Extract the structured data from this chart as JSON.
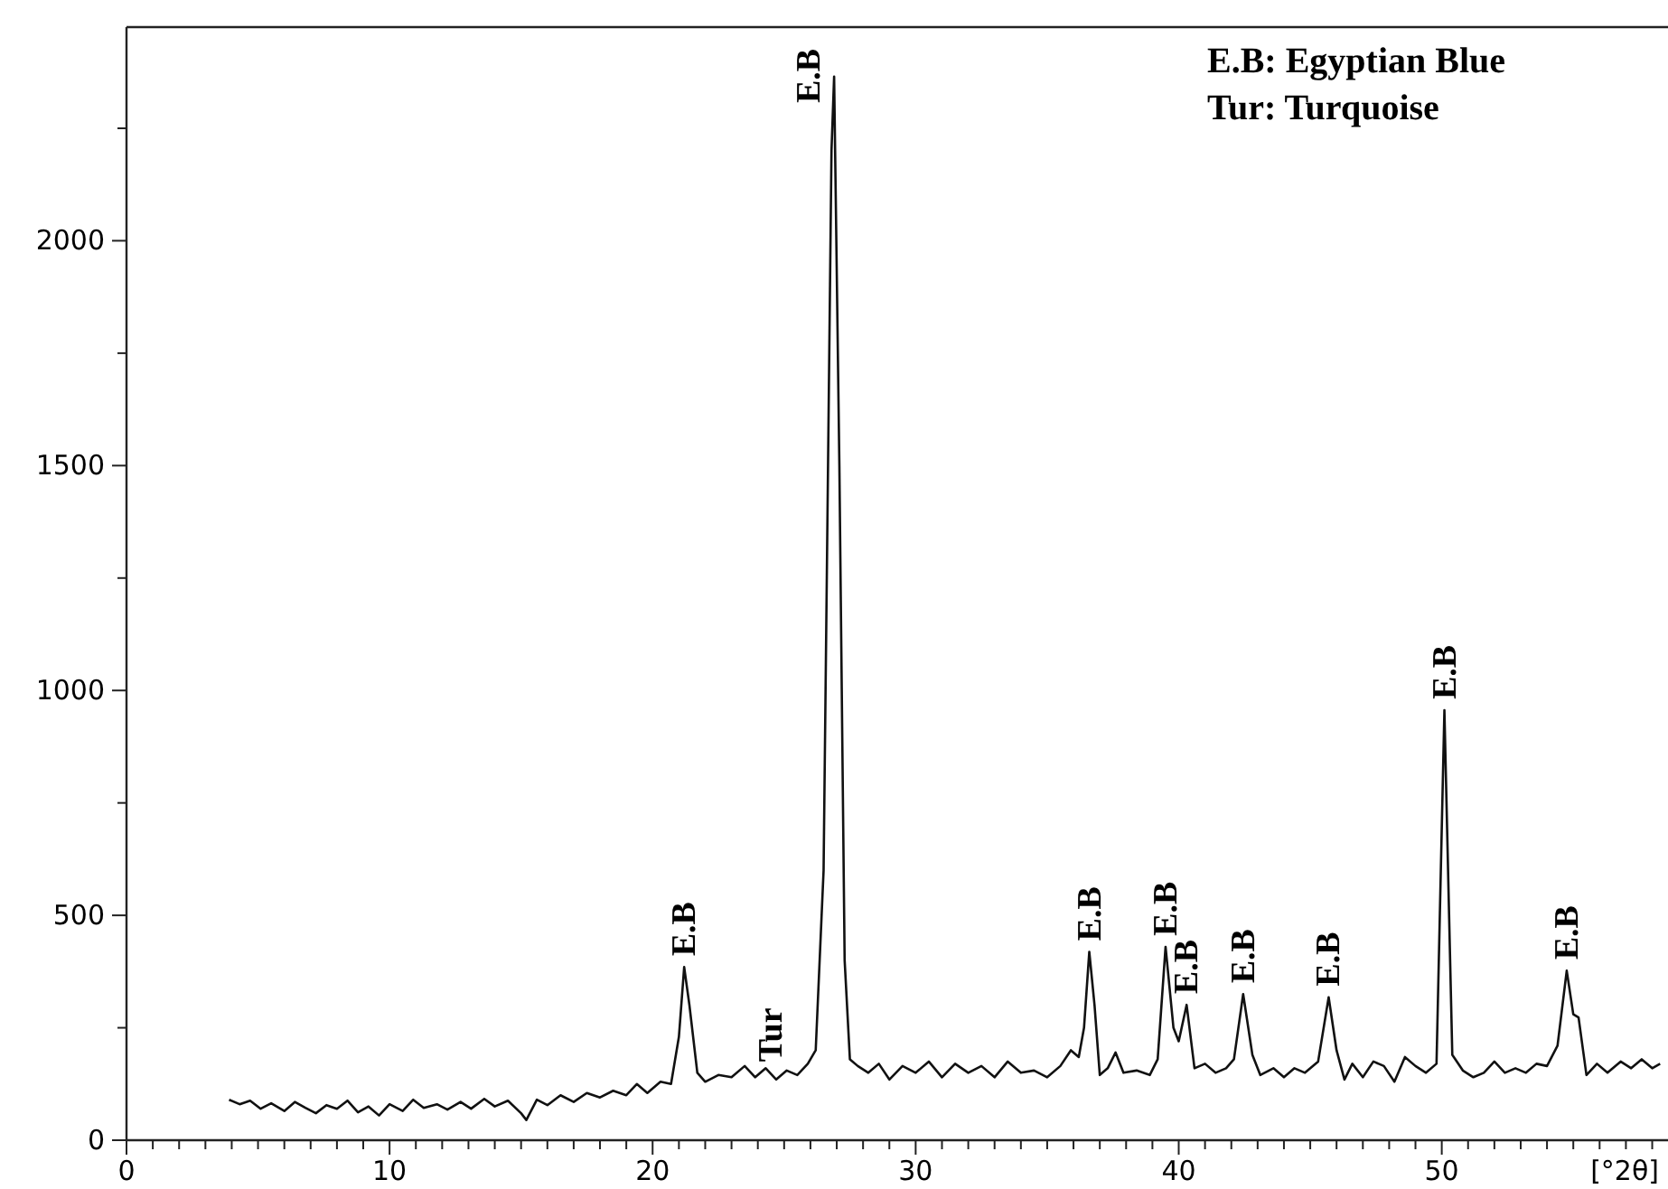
{
  "chart_data": {
    "type": "line",
    "xlabel": "[°2θ]",
    "xlim": [
      0,
      58.6
    ],
    "xticks": [
      0,
      {
        "value": 1,
        "label": null
      },
      {
        "value": 2,
        "label": null
      },
      {
        "value": 3,
        "label": null
      },
      {
        "value": 4,
        "label": null
      },
      {
        "value": 5,
        "label": null
      },
      {
        "value": 6,
        "label": null
      },
      {
        "value": 7,
        "label": null
      },
      {
        "value": 8,
        "label": null
      },
      {
        "value": 9,
        "label": null
      },
      10,
      {
        "value": 11,
        "label": null
      },
      {
        "value": 12,
        "label": null
      },
      {
        "value": 13,
        "label": null
      },
      {
        "value": 14,
        "label": null
      },
      {
        "value": 15,
        "label": null
      },
      {
        "value": 16,
        "label": null
      },
      {
        "value": 17,
        "label": null
      },
      {
        "value": 18,
        "label": null
      },
      {
        "value": 19,
        "label": null
      },
      20,
      {
        "value": 21,
        "label": null
      },
      {
        "value": 22,
        "label": null
      },
      {
        "value": 23,
        "label": null
      },
      {
        "value": 24,
        "label": null
      },
      {
        "value": 25,
        "label": null
      },
      {
        "value": 26,
        "label": null
      },
      {
        "value": 27,
        "label": null
      },
      {
        "value": 28,
        "label": null
      },
      {
        "value": 29,
        "label": null
      },
      30,
      {
        "value": 31,
        "label": null
      },
      {
        "value": 32,
        "label": null
      },
      {
        "value": 33,
        "label": null
      },
      {
        "value": 34,
        "label": null
      },
      {
        "value": 35,
        "label": null
      },
      {
        "value": 36,
        "label": null
      },
      {
        "value": 37,
        "label": null
      },
      {
        "value": 38,
        "label": null
      },
      {
        "value": 39,
        "label": null
      },
      40,
      {
        "value": 41,
        "label": null
      },
      {
        "value": 42,
        "label": null
      },
      {
        "value": 43,
        "label": null
      },
      {
        "value": 44,
        "label": null
      },
      {
        "value": 45,
        "label": null
      },
      {
        "value": 46,
        "label": null
      },
      {
        "value": 47,
        "label": null
      },
      {
        "value": 48,
        "label": null
      },
      {
        "value": 49,
        "label": null
      },
      50,
      {
        "value": 51,
        "label": null
      },
      {
        "value": 52,
        "label": null
      },
      {
        "value": 53,
        "label": null
      },
      {
        "value": 54,
        "label": null
      },
      {
        "value": 55,
        "label": null
      },
      {
        "value": 56,
        "label": null
      },
      {
        "value": 57,
        "label": null
      },
      {
        "value": 58,
        "label": null
      }
    ],
    "ylim": [
      0,
      2475
    ],
    "yticks": [
      0,
      {
        "value": 250,
        "label": null
      },
      500,
      {
        "value": 750,
        "label": null
      },
      1000,
      {
        "value": 1250,
        "label": null
      },
      1500,
      {
        "value": 1750,
        "label": null
      },
      2000,
      {
        "value": 2250,
        "label": null
      }
    ],
    "grid": false,
    "marker": "none",
    "line_style": "solid",
    "series": [
      {
        "color": "#111111",
        "x": [
          3.9,
          4.3,
          4.7,
          5.1,
          5.5,
          6.0,
          6.4,
          6.8,
          7.2,
          7.6,
          8.0,
          8.4,
          8.8,
          9.2,
          9.6,
          10.0,
          10.5,
          10.9,
          11.3,
          11.8,
          12.2,
          12.7,
          13.1,
          13.6,
          14.0,
          14.5,
          15.0,
          15.2,
          15.6,
          16.0,
          16.5,
          17.0,
          17.5,
          18.0,
          18.5,
          19.0,
          19.4,
          19.8,
          20.3,
          20.7,
          21.0,
          21.2,
          21.4,
          21.7,
          22.0,
          22.5,
          23.0,
          23.5,
          23.9,
          24.3,
          24.7,
          25.1,
          25.5,
          25.9,
          26.2,
          26.5,
          26.8,
          26.9,
          27.1,
          27.3,
          27.5,
          27.8,
          28.2,
          28.6,
          29.0,
          29.5,
          30.0,
          30.5,
          31.0,
          31.5,
          32.0,
          32.5,
          33.0,
          33.5,
          34.0,
          34.5,
          35.0,
          35.5,
          35.9,
          36.2,
          36.4,
          36.6,
          36.8,
          37.0,
          37.3,
          37.6,
          37.9,
          38.4,
          38.9,
          39.2,
          39.5,
          39.8,
          40.0,
          40.3,
          40.6,
          41.0,
          41.4,
          41.8,
          42.1,
          42.45,
          42.8,
          43.1,
          43.6,
          44.0,
          44.4,
          44.8,
          45.3,
          45.7,
          46.0,
          46.3,
          46.6,
          47.0,
          47.4,
          47.8,
          48.2,
          48.6,
          49.0,
          49.4,
          49.8,
          50.1,
          50.4,
          50.8,
          51.2,
          51.6,
          52.0,
          52.4,
          52.8,
          53.2,
          53.6,
          54.0,
          54.4,
          54.75,
          55.0,
          55.2,
          55.5,
          55.9,
          56.3,
          56.8,
          57.2,
          57.6,
          58.0,
          58.3
        ],
        "values": [
          90,
          80,
          88,
          70,
          82,
          65,
          85,
          72,
          60,
          78,
          70,
          88,
          62,
          75,
          55,
          80,
          65,
          90,
          72,
          80,
          68,
          85,
          70,
          92,
          75,
          88,
          60,
          45,
          90,
          78,
          100,
          85,
          105,
          95,
          110,
          100,
          125,
          105,
          130,
          125,
          230,
          385,
          300,
          150,
          130,
          145,
          140,
          165,
          140,
          160,
          135,
          155,
          145,
          170,
          200,
          600,
          2200,
          2365,
          1500,
          400,
          180,
          165,
          150,
          170,
          135,
          165,
          150,
          175,
          140,
          170,
          150,
          165,
          140,
          175,
          150,
          155,
          140,
          165,
          200,
          185,
          250,
          419,
          300,
          145,
          160,
          195,
          150,
          155,
          145,
          180,
          430,
          250,
          220,
          301,
          160,
          170,
          150,
          160,
          180,
          325,
          190,
          145,
          160,
          140,
          160,
          150,
          175,
          318,
          200,
          135,
          170,
          140,
          175,
          165,
          130,
          185,
          165,
          150,
          170,
          956,
          190,
          155,
          140,
          150,
          175,
          150,
          160,
          150,
          170,
          165,
          210,
          377,
          280,
          273,
          145,
          170,
          150,
          175,
          160,
          180,
          160,
          170
        ]
      }
    ],
    "annotations": [
      "E.B: Egyptian Blue",
      "Tur: Turquoise",
      {
        "text": "E.B",
        "x": 21.2,
        "y": 385
      },
      {
        "text": "Tur",
        "x": 24.5,
        "y": 150
      },
      {
        "text": "E.B",
        "x": 26.9,
        "y": 2365
      },
      {
        "text": "E.B",
        "x": 36.6,
        "y": 419
      },
      {
        "text": "E.B",
        "x": 39.5,
        "y": 430
      },
      {
        "text": "E.B",
        "x": 40.3,
        "y": 301
      },
      {
        "text": "E.B",
        "x": 42.45,
        "y": 325
      },
      {
        "text": "E.B",
        "x": 45.7,
        "y": 318
      },
      {
        "text": "E.B",
        "x": 50.1,
        "y": 956
      },
      {
        "text": "E.B",
        "x": 54.75,
        "y": 377
      }
    ]
  }
}
